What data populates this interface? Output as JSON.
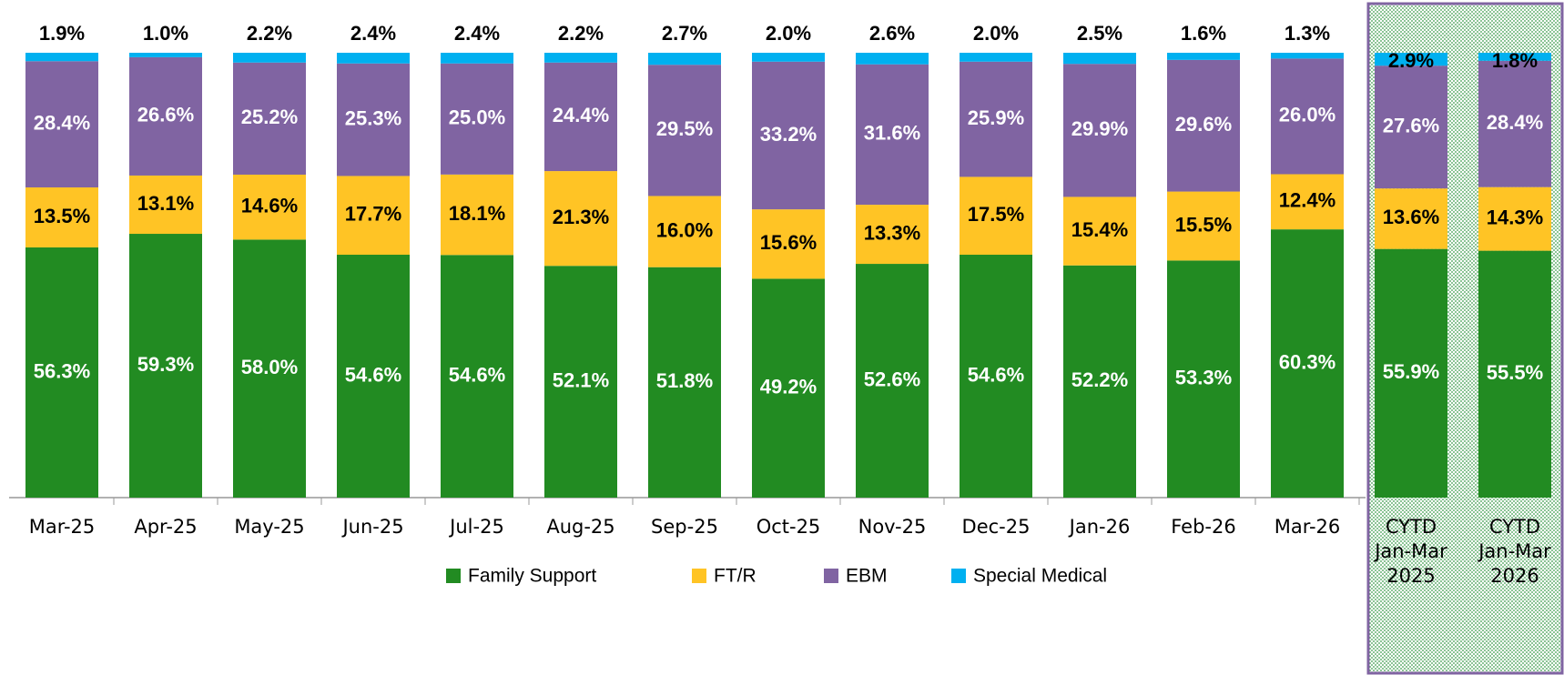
{
  "chart_data": {
    "type": "stacked-bar",
    "categories": [
      "Mar-25",
      "Apr-25",
      "May-25",
      "Jun-25",
      "Jul-25",
      "Aug-25",
      "Sep-25",
      "Oct-25",
      "Nov-25",
      "Dec-25",
      "Jan-26",
      "Feb-26",
      "Mar-26",
      "CYTD Jan-Mar 2025",
      "CYTD Jan-Mar 2026"
    ],
    "series": [
      {
        "name": "Family Support",
        "color": "#228b22",
        "values": [
          56.3,
          59.3,
          58.0,
          54.6,
          54.6,
          52.1,
          51.8,
          49.2,
          52.6,
          54.6,
          52.2,
          53.3,
          60.3,
          55.9,
          55.5
        ],
        "value_labels": [
          "56.3%",
          "59.3%",
          "58.0%",
          "54.6%",
          "54.6%",
          "52.1%",
          "51.8%",
          "49.2%",
          "52.6%",
          "54.6%",
          "52.2%",
          "53.3%",
          "60.3%",
          "55.9%",
          "55.5%"
        ]
      },
      {
        "name": "FT/R",
        "color": "#ffc425",
        "values": [
          13.5,
          13.1,
          14.6,
          17.7,
          18.1,
          21.3,
          16.0,
          15.6,
          13.3,
          17.5,
          15.4,
          15.5,
          12.4,
          13.6,
          14.3
        ],
        "value_labels": [
          "13.5%",
          "13.1%",
          "14.6%",
          "17.7%",
          "18.1%",
          "21.3%",
          "16.0%",
          "15.6%",
          "13.3%",
          "17.5%",
          "15.4%",
          "15.5%",
          "12.4%",
          "13.6%",
          "14.3%"
        ]
      },
      {
        "name": "EBM",
        "color": "#8064a2",
        "values": [
          28.4,
          26.6,
          25.2,
          25.3,
          25.0,
          24.4,
          29.5,
          33.2,
          31.6,
          25.9,
          29.9,
          29.6,
          26.0,
          27.6,
          28.4
        ],
        "value_labels": [
          "28.4%",
          "26.6%",
          "25.2%",
          "25.3%",
          "25.0%",
          "24.4%",
          "29.5%",
          "33.2%",
          "31.6%",
          "25.9%",
          "29.9%",
          "29.6%",
          "26.0%",
          "27.6%",
          "28.4%"
        ]
      },
      {
        "name": "Special Medical",
        "color": "#00b0f0",
        "values": [
          1.9,
          1.0,
          2.2,
          2.4,
          2.4,
          2.2,
          2.7,
          2.0,
          2.6,
          2.0,
          2.5,
          1.6,
          1.3,
          2.9,
          1.8
        ],
        "value_labels": [
          "1.9%",
          "1.0%",
          "2.2%",
          "2.4%",
          "2.4%",
          "2.2%",
          "2.7%",
          "2.0%",
          "2.6%",
          "2.0%",
          "2.5%",
          "1.6%",
          "1.3%",
          "2.9%",
          "1.8%"
        ]
      }
    ]
  }
}
